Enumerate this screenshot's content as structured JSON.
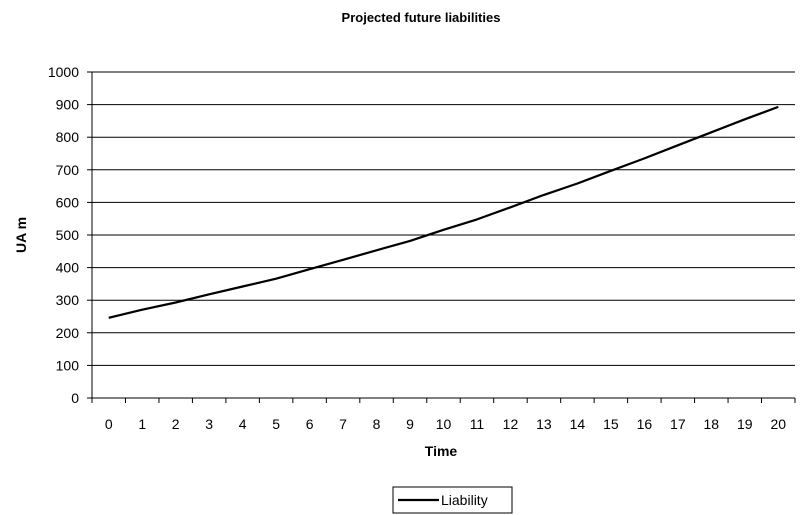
{
  "chart_data": {
    "type": "line",
    "title": "Projected future liabilities",
    "xlabel": "Time",
    "ylabel": "UA m",
    "x": [
      0,
      1,
      2,
      3,
      4,
      5,
      6,
      7,
      8,
      9,
      10,
      11,
      12,
      13,
      14,
      15,
      16,
      17,
      18,
      19,
      20
    ],
    "series": [
      {
        "name": "Liability",
        "color": "#000000",
        "values": [
          246,
          271,
          293,
          318,
          342,
          366,
          395,
          424,
          453,
          482,
          516,
          548,
          585,
          623,
          658,
          697,
          735,
          775,
          815,
          855,
          893
        ]
      }
    ],
    "ylim": [
      0,
      1000
    ],
    "yticks": [
      0,
      100,
      200,
      300,
      400,
      500,
      600,
      700,
      800,
      900,
      1000
    ],
    "xticks": [
      "0",
      "1",
      "2",
      "3",
      "4",
      "5",
      "6",
      "7",
      "8",
      "9",
      "10",
      "11",
      "12",
      "13",
      "14",
      "15",
      "16",
      "17",
      "18",
      "19",
      "20"
    ],
    "grid": "horizontal",
    "legend_position": "bottom"
  }
}
